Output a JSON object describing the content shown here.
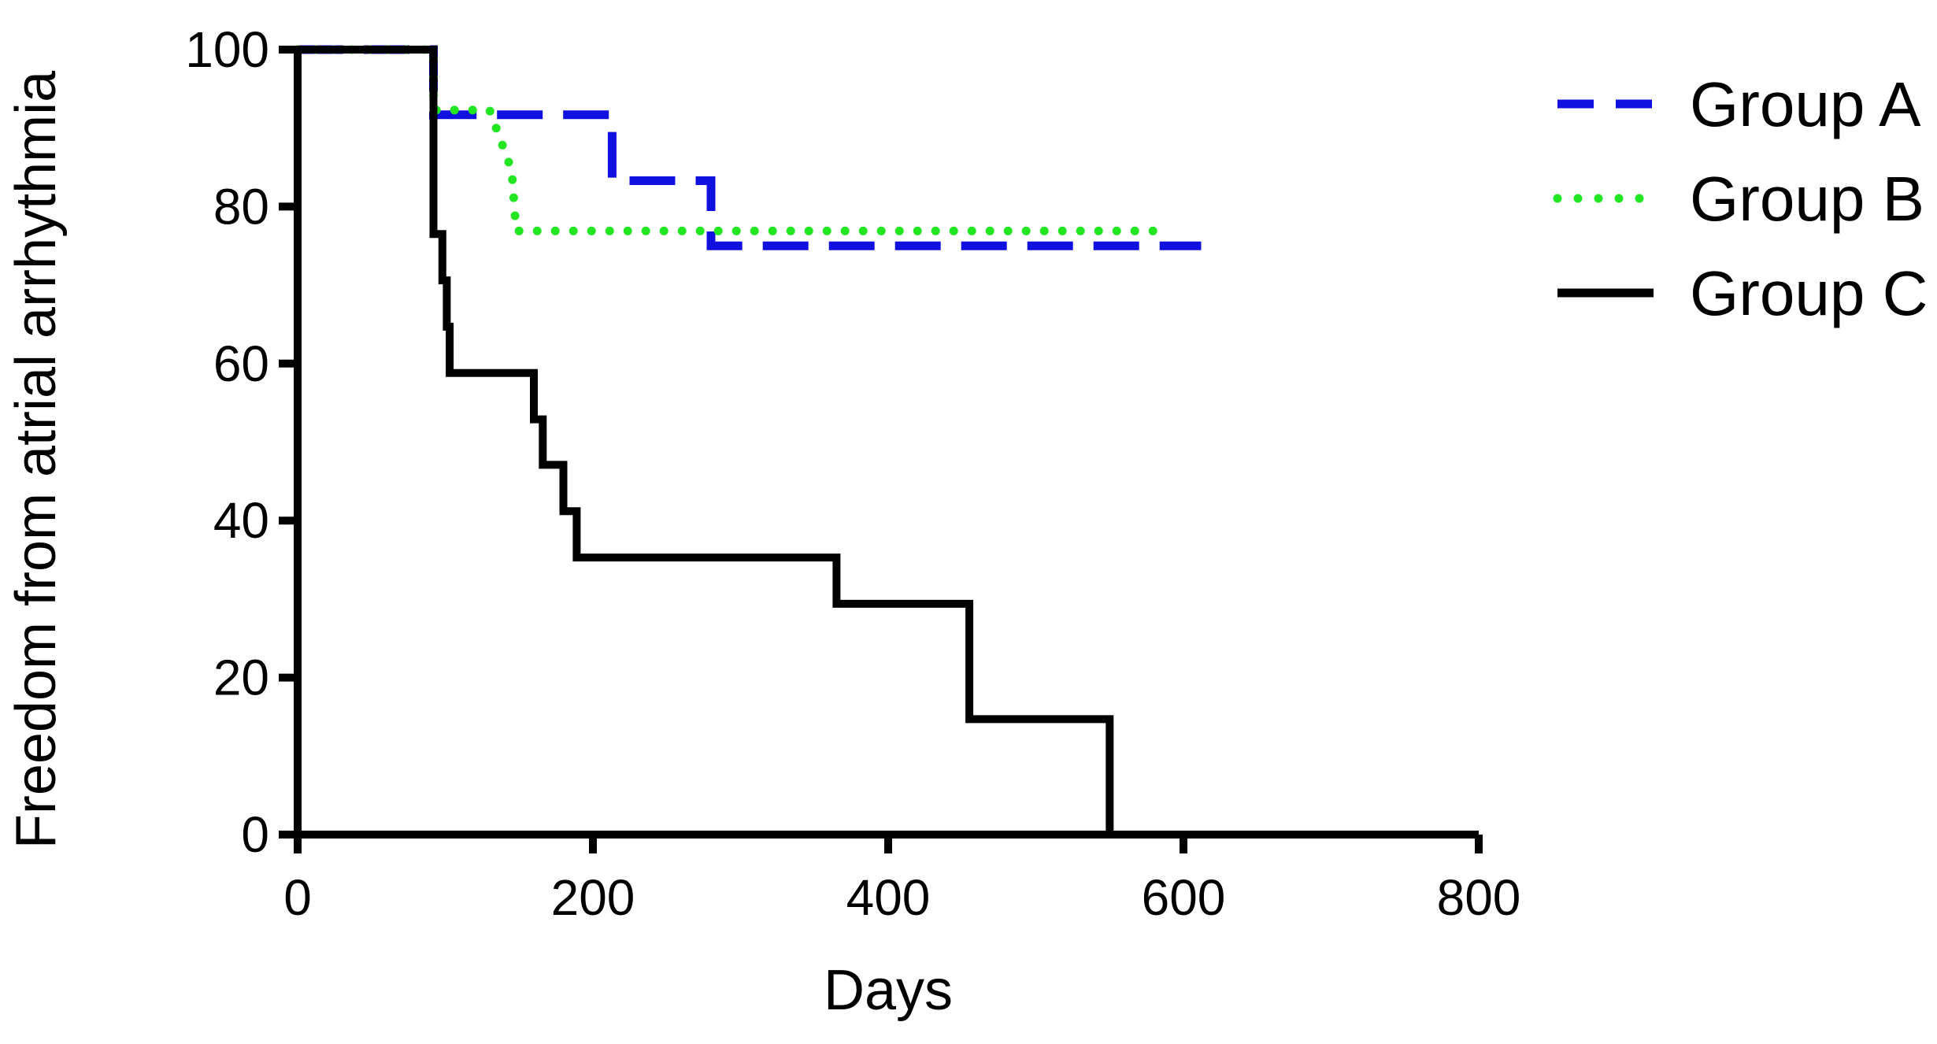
{
  "chart_data": {
    "type": "line",
    "style": "step",
    "title": "",
    "xlabel": "Days",
    "ylabel": "Freedom from atrial arrhythmia",
    "xlim": [
      0,
      800
    ],
    "ylim": [
      0,
      100
    ],
    "xticks": [
      "0",
      "200",
      "400",
      "600",
      "800"
    ],
    "yticks": [
      "0",
      "20",
      "40",
      "60",
      "80",
      "100"
    ],
    "grid": false,
    "legend_position": "top-right",
    "series": [
      {
        "name": "Group A",
        "line_style": "dashed",
        "color": "#1010e0",
        "points": [
          [
            0,
            100
          ],
          [
            92,
            100
          ],
          [
            92,
            91.7
          ],
          [
            213,
            91.7
          ],
          [
            213,
            83.3
          ],
          [
            280,
            83.3
          ],
          [
            280,
            75
          ],
          [
            612,
            75
          ]
        ]
      },
      {
        "name": "Group B",
        "line_style": "dotted",
        "color": "#22e622",
        "points": [
          [
            0,
            100
          ],
          [
            92,
            100
          ],
          [
            92,
            92.3
          ],
          [
            130,
            92.3
          ],
          [
            145,
            84.6
          ],
          [
            148,
            76.9
          ],
          [
            585,
            76.9
          ]
        ]
      },
      {
        "name": "Group C",
        "line_style": "solid",
        "color": "#000000",
        "points": [
          [
            0,
            100
          ],
          [
            92,
            100
          ],
          [
            92,
            76.5
          ],
          [
            98,
            76.5
          ],
          [
            98,
            70.6
          ],
          [
            101,
            70.6
          ],
          [
            101,
            64.7
          ],
          [
            103,
            64.7
          ],
          [
            103,
            58.8
          ],
          [
            160,
            58.8
          ],
          [
            160,
            52.9
          ],
          [
            166,
            52.9
          ],
          [
            166,
            47.1
          ],
          [
            180,
            47.1
          ],
          [
            180,
            41.2
          ],
          [
            189,
            41.2
          ],
          [
            189,
            35.3
          ],
          [
            365,
            35.3
          ],
          [
            365,
            29.4
          ],
          [
            455,
            29.4
          ],
          [
            455,
            14.7
          ],
          [
            550,
            14.7
          ],
          [
            550,
            0
          ]
        ]
      }
    ]
  }
}
